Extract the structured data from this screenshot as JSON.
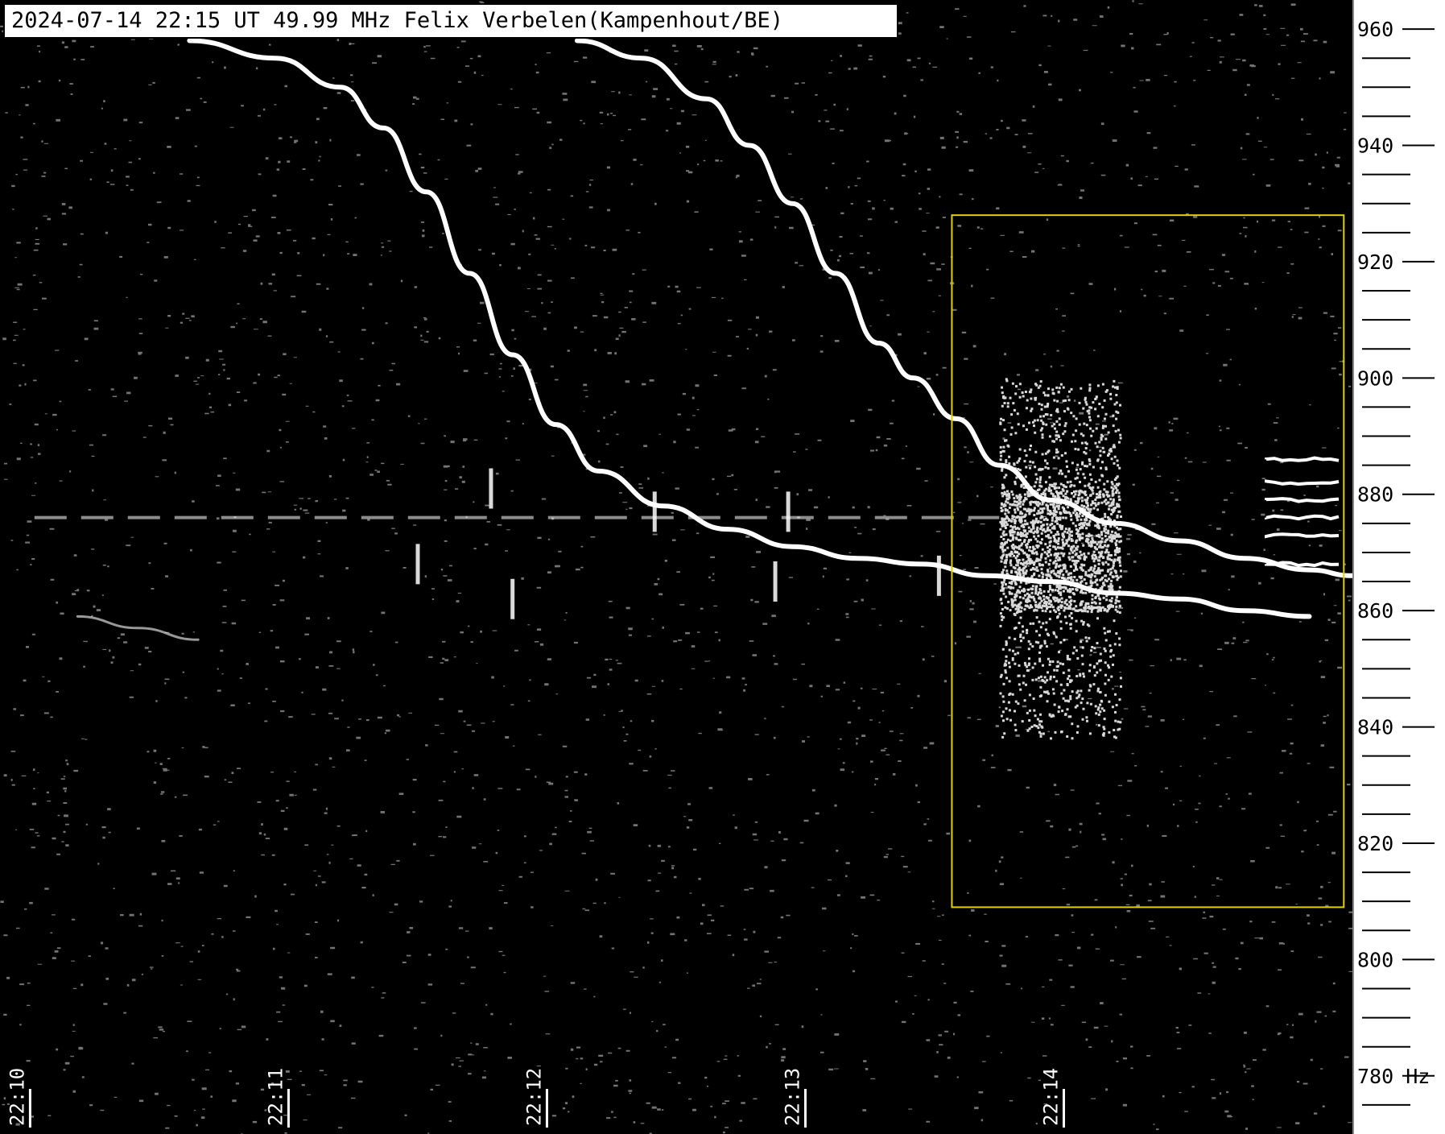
{
  "header": {
    "title": "2024-07-14 22:15 UT 49.99 MHz Felix Verbelen(Kampenhout/BE)"
  },
  "colors": {
    "background": "#000000",
    "trace": "#ffffff",
    "highlight_box": "#e0d000",
    "axis_panel": "#ffffff",
    "axis_ink": "#000000"
  },
  "chart_data": {
    "type": "spectrogram",
    "title": "2024-07-14 22:15 UT 49.99 MHz Felix Verbelen(Kampenhout/BE)",
    "x": {
      "label": "",
      "ticks": [
        "22:10",
        "22:11",
        "22:12",
        "22:13",
        "22:14"
      ],
      "range": [
        "22:09:56",
        "22:15:10"
      ]
    },
    "y": {
      "label": "Hz",
      "unit": "Hz",
      "ticks": [
        960,
        940,
        920,
        900,
        880,
        860,
        840,
        820,
        800,
        780
      ],
      "tick_labels": [
        "960",
        "940",
        "920",
        "900",
        "880",
        "860",
        "840",
        "820",
        "800",
        "780 Hz"
      ],
      "range": [
        770,
        965
      ],
      "minor_step": 5
    },
    "traces": [
      {
        "name": "",
        "points": [
          [
            "22:10:40",
            958
          ],
          [
            "22:11:00",
            955
          ],
          [
            "22:11:15",
            950
          ],
          [
            "22:11:25",
            943
          ],
          [
            "22:11:35",
            932
          ],
          [
            "22:11:45",
            918
          ],
          [
            "22:11:55",
            904
          ],
          [
            "22:12:05",
            892
          ],
          [
            "22:12:15",
            884
          ],
          [
            "22:12:30",
            878
          ],
          [
            "22:12:45",
            874
          ],
          [
            "22:13:00",
            871
          ],
          [
            "22:13:15",
            869
          ],
          [
            "22:13:30",
            868
          ],
          [
            "22:13:45",
            866
          ],
          [
            "22:14:00",
            865
          ],
          [
            "22:14:15",
            863
          ],
          [
            "22:14:30",
            862
          ],
          [
            "22:14:45",
            860
          ],
          [
            "22:15:00",
            859
          ]
        ]
      },
      {
        "name": "",
        "points": [
          [
            "22:12:10",
            958
          ],
          [
            "22:12:25",
            955
          ],
          [
            "22:12:40",
            948
          ],
          [
            "22:12:50",
            940
          ],
          [
            "22:13:00",
            930
          ],
          [
            "22:13:10",
            918
          ],
          [
            "22:13:20",
            906
          ],
          [
            "22:13:28",
            900
          ],
          [
            "22:13:38",
            893
          ],
          [
            "22:13:48",
            885
          ],
          [
            "22:14:00",
            879
          ],
          [
            "22:14:15",
            875
          ],
          [
            "22:14:30",
            872
          ],
          [
            "22:14:45",
            869
          ],
          [
            "22:15:00",
            867
          ],
          [
            "22:15:10",
            866
          ]
        ]
      },
      {
        "name": "",
        "points": [
          [
            "22:10:14",
            859
          ],
          [
            "22:10:28",
            857
          ],
          [
            "22:10:42",
            855
          ]
        ]
      }
    ],
    "carrier_line_hz": 876,
    "pings": [
      [
        "22:11:50",
        881
      ],
      [
        "22:11:33",
        868
      ],
      [
        "22:11:55",
        862
      ],
      [
        "22:12:28",
        877
      ],
      [
        "22:12:59",
        877
      ],
      [
        "22:12:56",
        865
      ],
      [
        "22:13:34",
        866
      ]
    ],
    "noise_burst": {
      "time_range": [
        "22:13:48",
        "22:14:16"
      ],
      "freq_range": [
        838,
        900
      ],
      "dense_core_hz": [
        860,
        882
      ]
    },
    "scatter_echoes": {
      "time_range": [
        "22:14:50",
        "22:15:08"
      ],
      "freq_range": [
        859,
        888
      ],
      "lines_hz": [
        886,
        882,
        879,
        876,
        873,
        868
      ]
    },
    "annotation_box": {
      "time_range": [
        "22:13:37",
        "22:15:08"
      ],
      "freq_range": [
        809,
        928
      ]
    },
    "grid": false,
    "noise_speckle": true
  }
}
